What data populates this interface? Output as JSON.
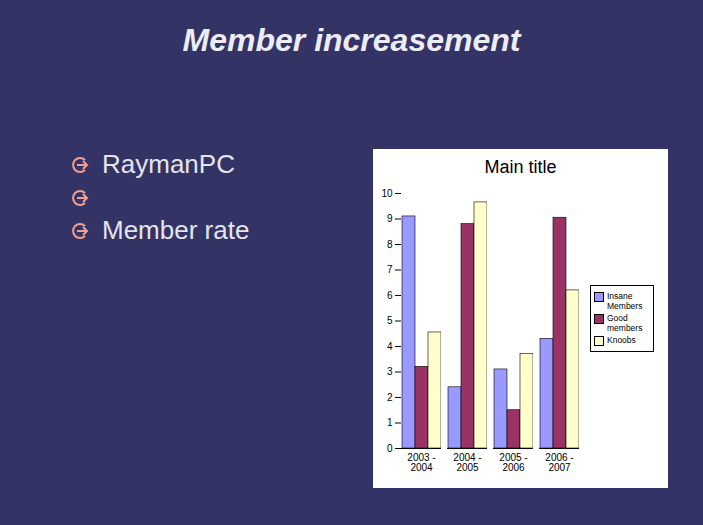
{
  "slide": {
    "title": "Member increasement",
    "bullets": [
      "RaymanPC",
      null,
      "Member rate"
    ]
  },
  "chart_data": {
    "type": "bar",
    "title": "Main title",
    "categories": [
      "2003 - 2004",
      "2004 - 2005",
      "2005 - 2006",
      "2006 - 2007"
    ],
    "series": [
      {
        "name": "Insane Members",
        "color": "#9999ff",
        "values": [
          9.1,
          2.4,
          3.1,
          4.3
        ]
      },
      {
        "name": "Good members",
        "color": "#993366",
        "values": [
          3.2,
          8.8,
          1.5,
          9.05
        ]
      },
      {
        "name": "Knoobs",
        "color": "#ffffcc",
        "values": [
          4.55,
          9.65,
          3.7,
          6.2
        ]
      }
    ],
    "ylim": [
      0,
      10
    ],
    "yticks": [
      0,
      1,
      2,
      3,
      4,
      5,
      6,
      7,
      8,
      9,
      10
    ],
    "grid": false,
    "legend": "right"
  }
}
